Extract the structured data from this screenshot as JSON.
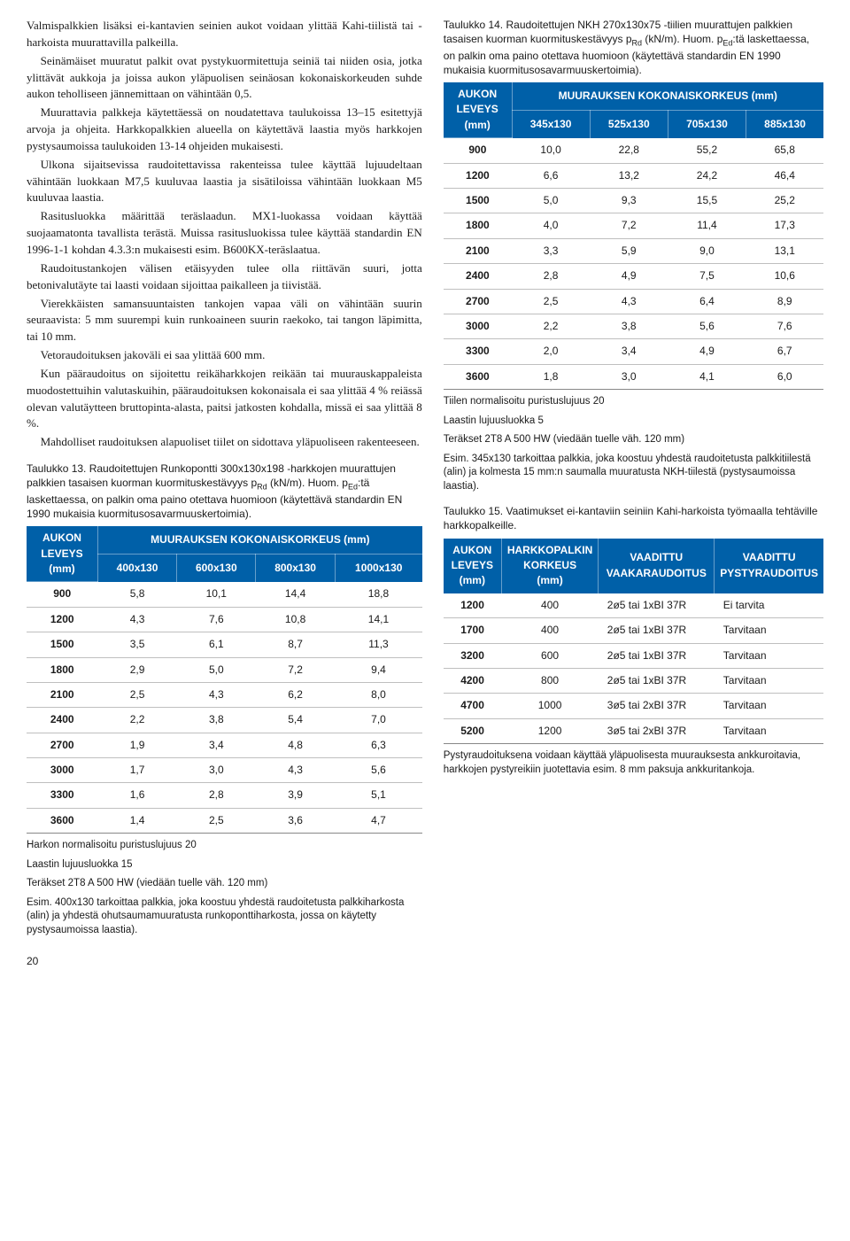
{
  "colors": {
    "table13_head": "#0060a8",
    "table14_head": "#0060a8",
    "table15_head": "#0060a8",
    "grid": "#bfbfbf",
    "text": "#1a1a1a",
    "bg": "#ffffff"
  },
  "left": {
    "paras": [
      "Valmispalkkien lisäksi ei-kantavien seinien aukot voidaan ylittää Kahi-tiilistä tai -harkoista muurattavilla palkeilla.",
      "Seinämäiset muuratut palkit ovat pystykuormitettuja seiniä tai niiden osia, jotka ylittävät aukkoja ja joissa aukon yläpuolisen seinäosan kokonaiskorkeuden suhde aukon teholliseen jännemittaan on vähintään 0,5.",
      "Muurattavia palkkeja käytettäessä on noudatettava taulukoissa 13–15 esitettyjä arvoja ja ohjeita. Harkkopalkkien alueella on käytettävä laastia myös harkkojen pystysaumoissa taulukoiden 13-14 ohjeiden mukaisesti.",
      "Ulkona sijaitsevissa raudoitettavissa rakenteissa tulee käyttää lujuudeltaan vähintään luokkaan M7,5 kuuluvaa laastia ja sisätiloissa vähintään luokkaan M5 kuuluvaa laastia.",
      "Rasitusluokka määrittää teräslaadun. MX1-luokassa voidaan käyttää suojaamatonta tavallista terästä. Muissa rasitusluokissa tulee käyttää standardin EN 1996-1-1 kohdan 4.3.3:n mukaisesti esim. B600KX-teräslaatua.",
      "Raudoitustankojen välisen etäisyyden tulee olla riittävän suuri, jotta betonivalutäyte tai laasti voidaan sijoittaa paikalleen ja tiivistää.",
      "Vierekkäisten samansuuntaisten tankojen vapaa väli on vähintään suurin seuraavista: 5 mm suurempi kuin runkoaineen suurin raekoko, tai tangon läpimitta, tai 10 mm.",
      "Vetoraudoituksen jakoväli ei saa ylittää 600 mm.",
      "Kun pääraudoitus on sijoitettu reikäharkkojen reikään tai muurauskappaleista muodostettuihin valutaskuihin, pääraudoituksen kokonaisala ei saa ylittää 4 % reiässä olevan valutäytteen bruttopinta-alasta, paitsi jatkosten kohdalla, missä ei saa ylittää 8 %.",
      "Mahdolliset raudoituksen alapuoliset tiilet on sidottava yläpuoliseen rakenteeseen."
    ]
  },
  "table13": {
    "caption_pre": "Taulukko 13. Raudoitettujen Runkopontti 300x130x198 -harkkojen muurattujen palkkien tasaisen kuorman kuormituskestävyys p",
    "caption_sub1": "Rd",
    "caption_mid": " (kN/m). Huom. p",
    "caption_sub2": "Ed",
    "caption_post": ":tä laskettaessa, on palkin oma paino otettava huomioon (käytettävä standardin EN 1990 mukaisia kuormitusosavarmuuskertoimia).",
    "head_rowlabel_l1": "AUKON",
    "head_rowlabel_l2": "LEVEYS",
    "head_rowlabel_l3": "(mm)",
    "head_group": "MUURAUKSEN KOKONAISKORKEUS (mm)",
    "cols": [
      "400x130",
      "600x130",
      "800x130",
      "1000x130"
    ],
    "rows": [
      {
        "k": "900",
        "v": [
          "5,8",
          "10,1",
          "14,4",
          "18,8"
        ]
      },
      {
        "k": "1200",
        "v": [
          "4,3",
          "7,6",
          "10,8",
          "14,1"
        ]
      },
      {
        "k": "1500",
        "v": [
          "3,5",
          "6,1",
          "8,7",
          "11,3"
        ]
      },
      {
        "k": "1800",
        "v": [
          "2,9",
          "5,0",
          "7,2",
          "9,4"
        ]
      },
      {
        "k": "2100",
        "v": [
          "2,5",
          "4,3",
          "6,2",
          "8,0"
        ]
      },
      {
        "k": "2400",
        "v": [
          "2,2",
          "3,8",
          "5,4",
          "7,0"
        ]
      },
      {
        "k": "2700",
        "v": [
          "1,9",
          "3,4",
          "4,8",
          "6,3"
        ]
      },
      {
        "k": "3000",
        "v": [
          "1,7",
          "3,0",
          "4,3",
          "5,6"
        ]
      },
      {
        "k": "3300",
        "v": [
          "1,6",
          "2,8",
          "3,9",
          "5,1"
        ]
      },
      {
        "k": "3600",
        "v": [
          "1,4",
          "2,5",
          "3,6",
          "4,7"
        ]
      }
    ],
    "footnotes": [
      "Harkon normalisoitu puristuslujuus 20",
      "Laastin lujuusluokka 15",
      "Teräkset 2T8  A 500 HW (viedään tuelle väh. 120 mm)",
      "Esim. 400x130 tarkoittaa palkkia, joka koostuu yhdestä raudoitetusta palkkiharkosta (alin) ja yhdestä ohutsaumamuuratusta runkoponttiharkosta, jossa on käytetty pystysaumoissa laastia)."
    ]
  },
  "table14": {
    "caption_pre": "Taulukko 14. Raudoitettujen NKH 270x130x75 -tiilien muurattujen palkkien tasaisen kuorman kuormituskestävyys p",
    "caption_sub1": "Rd",
    "caption_mid": " (kN/m). Huom. p",
    "caption_sub2": "Ed",
    "caption_post": ":tä laskettaessa, on palkin oma paino otettava huomioon (käytettävä standardin EN 1990 mukaisia kuormitusosavarmuuskertoimia).",
    "head_rowlabel_l1": "AUKON",
    "head_rowlabel_l2": "LEVEYS",
    "head_rowlabel_l3": "(mm)",
    "head_group": "MUURAUKSEN KOKONAISKORKEUS (mm)",
    "cols": [
      "345x130",
      "525x130",
      "705x130",
      "885x130"
    ],
    "rows": [
      {
        "k": "900",
        "v": [
          "10,0",
          "22,8",
          "55,2",
          "65,8"
        ]
      },
      {
        "k": "1200",
        "v": [
          "6,6",
          "13,2",
          "24,2",
          "46,4"
        ]
      },
      {
        "k": "1500",
        "v": [
          "5,0",
          "9,3",
          "15,5",
          "25,2"
        ]
      },
      {
        "k": "1800",
        "v": [
          "4,0",
          "7,2",
          "11,4",
          "17,3"
        ]
      },
      {
        "k": "2100",
        "v": [
          "3,3",
          "5,9",
          "9,0",
          "13,1"
        ]
      },
      {
        "k": "2400",
        "v": [
          "2,8",
          "4,9",
          "7,5",
          "10,6"
        ]
      },
      {
        "k": "2700",
        "v": [
          "2,5",
          "4,3",
          "6,4",
          "8,9"
        ]
      },
      {
        "k": "3000",
        "v": [
          "2,2",
          "3,8",
          "5,6",
          "7,6"
        ]
      },
      {
        "k": "3300",
        "v": [
          "2,0",
          "3,4",
          "4,9",
          "6,7"
        ]
      },
      {
        "k": "3600",
        "v": [
          "1,8",
          "3,0",
          "4,1",
          "6,0"
        ]
      }
    ],
    "footnotes": [
      "Tiilen normalisoitu puristuslujuus 20",
      "Laastin lujuusluokka 5",
      "Teräkset 2T8  A 500 HW (viedään tuelle väh. 120 mm)",
      "Esim. 345x130 tarkoittaa palkkia, joka koostuu yhdestä raudoitetusta palkkitiilestä (alin) ja kolmesta 15 mm:n saumalla muuratusta NKH-tiilestä (pystysaumoissa laastia)."
    ]
  },
  "table15": {
    "caption": "Taulukko 15. Vaatimukset ei-kantaviin seiniin Kahi-harkoista työmaalla tehtäville harkkopalkeille.",
    "head_c1_l1": "AUKON",
    "head_c1_l2": "LEVEYS",
    "head_c1_l3": "(mm)",
    "head_c2_l1": "HARKKOPALKIN",
    "head_c2_l2": "KORKEUS",
    "head_c2_l3": "(mm)",
    "head_c3_l1": "VAADITTU",
    "head_c3_l2": "VAAKARAUDOITUS",
    "head_c4_l1": "VAADITTU",
    "head_c4_l2": "PYSTYRAUDOITUS",
    "rows": [
      {
        "v": [
          "1200",
          "400",
          "2ø5 tai 1xBI 37R",
          "Ei tarvita"
        ]
      },
      {
        "v": [
          "1700",
          "400",
          "2ø5 tai 1xBI 37R",
          "Tarvitaan"
        ]
      },
      {
        "v": [
          "3200",
          "600",
          "2ø5 tai 1xBI 37R",
          "Tarvitaan"
        ]
      },
      {
        "v": [
          "4200",
          "800",
          "2ø5 tai 1xBI 37R",
          "Tarvitaan"
        ]
      },
      {
        "v": [
          "4700",
          "1000",
          "3ø5 tai 2xBI 37R",
          "Tarvitaan"
        ]
      },
      {
        "v": [
          "5200",
          "1200",
          "3ø5 tai 2xBI 37R",
          "Tarvitaan"
        ]
      }
    ],
    "footnote": "Pystyraudoituksena voidaan käyttää yläpuolisesta muurauksesta ankkuroitavia, harkkojen pystyreikiin juotettavia esim. 8 mm paksuja ankkuritankoja."
  },
  "page_number": "20"
}
